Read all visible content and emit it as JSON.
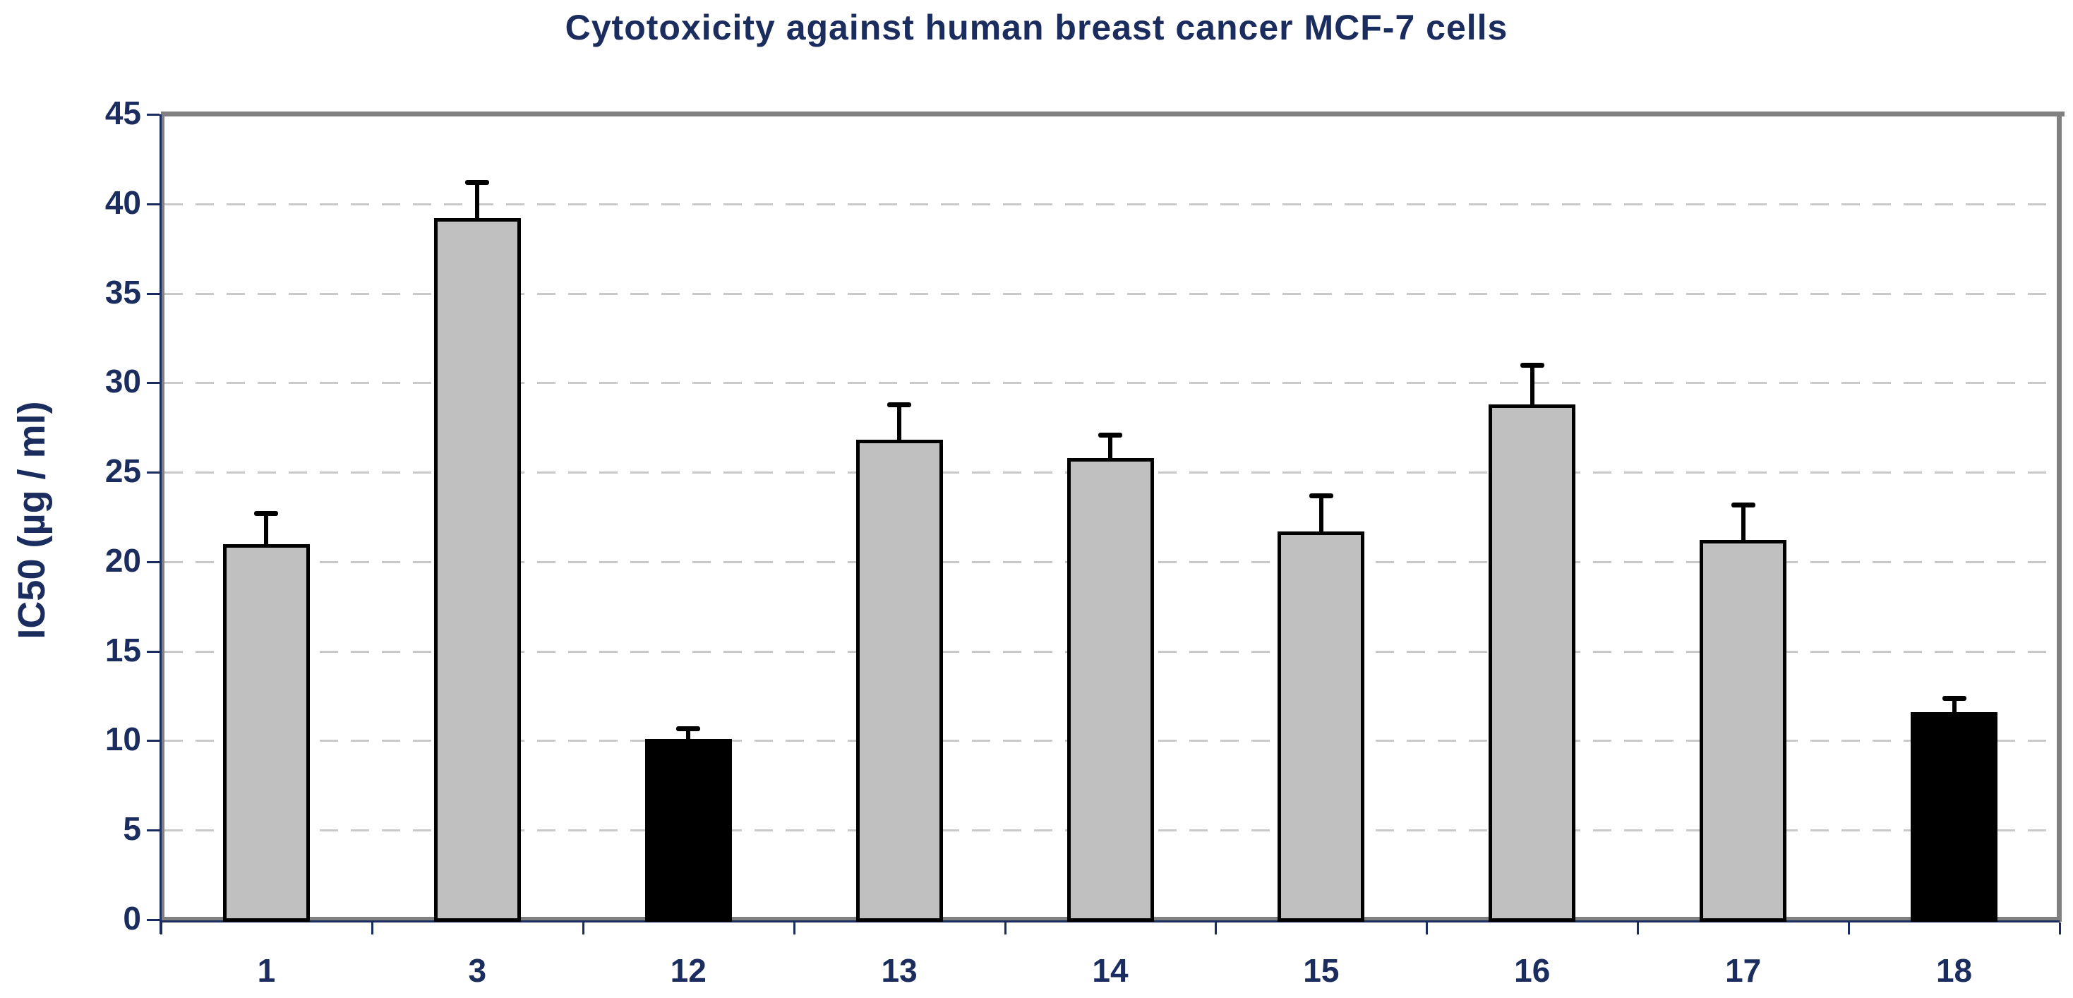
{
  "title": "Cytotoxicity against human breast cancer MCF-7 cells",
  "chart_data": {
    "type": "bar",
    "title": "Cytotoxicity against human breast cancer MCF-7 cells",
    "ylabel": "IC50 (µg / ml)",
    "xlabel": "",
    "categories": [
      "1",
      "3",
      "12",
      "13",
      "14",
      "15",
      "16",
      "17",
      "18"
    ],
    "values": [
      21.0,
      39.2,
      10.1,
      26.8,
      25.8,
      21.7,
      28.8,
      21.2,
      11.6
    ],
    "errors_plus": [
      1.7,
      2.0,
      0.6,
      2.0,
      1.3,
      2.0,
      2.2,
      2.0,
      0.8
    ],
    "bar_colors": [
      "#c0c0c0",
      "#c0c0c0",
      "#000000",
      "#c0c0c0",
      "#c0c0c0",
      "#c0c0c0",
      "#c0c0c0",
      "#c0c0c0",
      "#000000"
    ],
    "ylim": [
      0,
      45
    ],
    "yticks": [
      0,
      5,
      10,
      15,
      20,
      25,
      30,
      35,
      40,
      45
    ],
    "grid": "dashed-horizontal",
    "legend_position": "none"
  },
  "colors": {
    "text_navy": "#1b2d5e",
    "axis_navy": "#1b2d5e",
    "plot_border_gray": "#808080",
    "gridline_gray": "#c9c9c9",
    "bar_gray": "#c0c0c0",
    "bar_black": "#000000",
    "bar_border": "#000000",
    "background": "#ffffff"
  }
}
